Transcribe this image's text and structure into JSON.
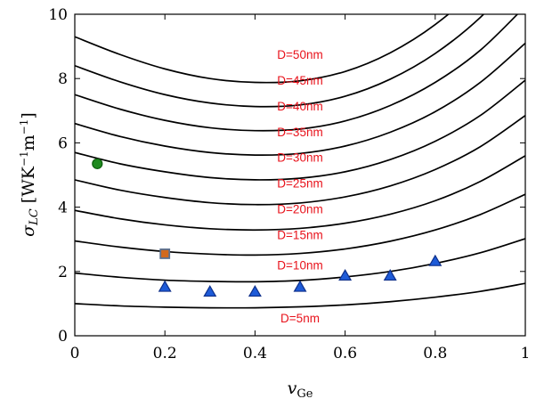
{
  "chart_data": {
    "type": "line",
    "xlabel": "v_Ge",
    "ylabel": "σ_LC [WK⁻¹m⁻¹]",
    "xlim": [
      0,
      1
    ],
    "ylim": [
      0,
      10
    ],
    "xticks": [
      "0",
      "0.2",
      "0.4",
      "0.6",
      "0.8",
      "1"
    ],
    "yticks": [
      "0",
      "2",
      "4",
      "6",
      "8",
      "10"
    ],
    "grid": false,
    "series": [
      {
        "name": "D=5nm",
        "label_at": [
          0.5,
          0.55
        ],
        "x": [
          0,
          0.1,
          0.2,
          0.3,
          0.4,
          0.5,
          0.6,
          0.7,
          0.8,
          0.9,
          1.0
        ],
        "values": [
          1.0,
          0.93,
          0.89,
          0.87,
          0.87,
          0.9,
          0.96,
          1.06,
          1.2,
          1.38,
          1.63
        ]
      },
      {
        "name": "D=10nm",
        "label_at": [
          0.5,
          2.2
        ],
        "x": [
          0,
          0.1,
          0.2,
          0.3,
          0.4,
          0.5,
          0.6,
          0.7,
          0.8,
          0.9,
          1.0
        ],
        "values": [
          1.95,
          1.82,
          1.73,
          1.69,
          1.68,
          1.72,
          1.83,
          2.0,
          2.25,
          2.58,
          3.02
        ]
      },
      {
        "name": "D=15nm",
        "label_at": [
          0.5,
          3.15
        ],
        "x": [
          0,
          0.1,
          0.2,
          0.3,
          0.4,
          0.5,
          0.6,
          0.7,
          0.8,
          0.9,
          1.0
        ],
        "values": [
          2.95,
          2.76,
          2.62,
          2.54,
          2.51,
          2.56,
          2.7,
          2.94,
          3.29,
          3.77,
          4.4
        ]
      },
      {
        "name": "D=20nm",
        "label_at": [
          0.5,
          3.95
        ],
        "x": [
          0,
          0.1,
          0.2,
          0.3,
          0.4,
          0.5,
          0.6,
          0.7,
          0.8,
          0.9,
          1.0
        ],
        "values": [
          3.9,
          3.64,
          3.45,
          3.33,
          3.29,
          3.34,
          3.5,
          3.78,
          4.2,
          4.8,
          5.6
        ]
      },
      {
        "name": "D=25nm",
        "label_at": [
          0.5,
          4.75
        ],
        "x": [
          0,
          0.1,
          0.2,
          0.3,
          0.4,
          0.5,
          0.6,
          0.7,
          0.8,
          0.9,
          1.0
        ],
        "values": [
          4.85,
          4.53,
          4.3,
          4.14,
          4.08,
          4.13,
          4.32,
          4.66,
          5.17,
          5.88,
          6.85
        ]
      },
      {
        "name": "D=30nm",
        "label_at": [
          0.5,
          5.55
        ],
        "x": [
          0,
          0.1,
          0.2,
          0.3,
          0.4,
          0.5,
          0.6,
          0.7,
          0.8,
          0.9,
          1.0
        ],
        "values": [
          5.7,
          5.35,
          5.1,
          4.92,
          4.85,
          4.9,
          5.1,
          5.48,
          6.05,
          6.85,
          7.95
        ]
      },
      {
        "name": "D=35nm",
        "label_at": [
          0.5,
          6.35
        ],
        "x": [
          0,
          0.1,
          0.2,
          0.3,
          0.4,
          0.5,
          0.6,
          0.7,
          0.8,
          0.9,
          1.0
        ],
        "values": [
          6.6,
          6.2,
          5.9,
          5.7,
          5.62,
          5.67,
          5.9,
          6.33,
          6.97,
          7.88,
          9.1
        ]
      },
      {
        "name": "D=40nm",
        "label_at": [
          0.5,
          7.15
        ],
        "x": [
          0,
          0.1,
          0.2,
          0.3,
          0.4,
          0.5,
          0.6,
          0.7,
          0.8,
          0.9,
          1.0
        ],
        "values": [
          7.5,
          7.05,
          6.7,
          6.47,
          6.38,
          6.43,
          6.68,
          7.16,
          7.88,
          8.88,
          10.25
        ]
      },
      {
        "name": "D=45nm",
        "label_at": [
          0.5,
          7.95
        ],
        "x": [
          0,
          0.1,
          0.2,
          0.3,
          0.4,
          0.5,
          0.6,
          0.7,
          0.8,
          0.9,
          1.0
        ],
        "values": [
          8.4,
          7.9,
          7.5,
          7.24,
          7.13,
          7.18,
          7.45,
          7.98,
          8.78,
          9.9,
          11.4
        ]
      },
      {
        "name": "D=50nm",
        "label_at": [
          0.5,
          8.75
        ],
        "x": [
          0,
          0.1,
          0.2,
          0.3,
          0.4,
          0.5,
          0.6,
          0.7,
          0.8,
          0.9,
          1.0
        ],
        "values": [
          9.3,
          8.75,
          8.3,
          8.0,
          7.88,
          7.93,
          8.22,
          8.8,
          9.68,
          10.9,
          12.55
        ]
      }
    ],
    "markers": [
      {
        "shape": "circle",
        "color": "#1f8a1f",
        "edge": "#0b5e0b",
        "points": [
          [
            0.05,
            5.35
          ]
        ]
      },
      {
        "shape": "square",
        "color": "#d2691e",
        "edge": "#5a6f8f",
        "points": [
          [
            0.2,
            2.55
          ]
        ]
      },
      {
        "shape": "triangle",
        "color": "#1e5bd8",
        "edge": "#0d2f8a",
        "points": [
          [
            0.2,
            1.5
          ],
          [
            0.3,
            1.35
          ],
          [
            0.4,
            1.35
          ],
          [
            0.5,
            1.5
          ],
          [
            0.6,
            1.85
          ],
          [
            0.7,
            1.85
          ],
          [
            0.8,
            2.3
          ]
        ]
      }
    ]
  }
}
